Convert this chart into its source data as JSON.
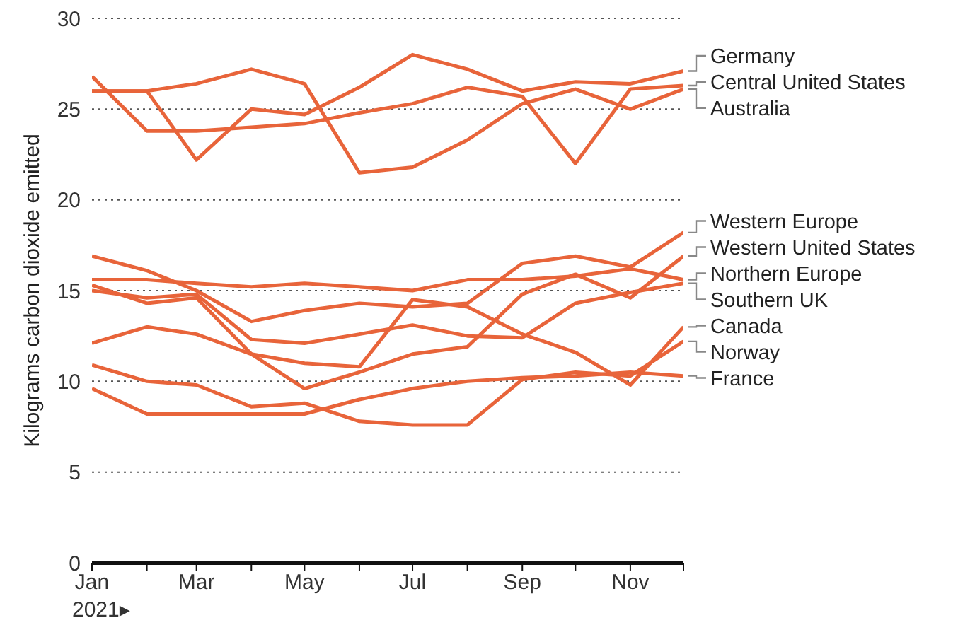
{
  "chart_data": {
    "type": "line",
    "ylabel": "Kilograms carbon dioxide emitted",
    "x": [
      "2021-01",
      "2021-02",
      "2021-03",
      "2021-04",
      "2021-05",
      "2021-06",
      "2021-07",
      "2021-08",
      "2021-09",
      "2021-10",
      "2021-11",
      "2021-12"
    ],
    "xlim": [
      "2021-01",
      "2021-12"
    ],
    "xticks": [
      {
        "value": "2021-01",
        "label": "Jan"
      },
      {
        "value": "2021-02",
        "label": null
      },
      {
        "value": "2021-03",
        "label": "Mar"
      },
      {
        "value": "2021-04",
        "label": null
      },
      {
        "value": "2021-05",
        "label": "May"
      },
      {
        "value": "2021-06",
        "label": null
      },
      {
        "value": "2021-07",
        "label": "Jul"
      },
      {
        "value": "2021-08",
        "label": null
      },
      {
        "value": "2021-09",
        "label": "Sep"
      },
      {
        "value": "2021-10",
        "label": null
      },
      {
        "value": "2021-11",
        "label": "Nov"
      },
      {
        "value": "2021-12",
        "label": null
      }
    ],
    "ylim": [
      0,
      30
    ],
    "yticks": [
      0,
      5,
      10,
      15,
      20,
      25,
      30
    ],
    "grid": "y",
    "annotations": [
      "2021▸"
    ],
    "series": [
      {
        "name": "Germany",
        "color": "#e8643a",
        "values": [
          26.0,
          26.0,
          22.2,
          25.0,
          24.7,
          26.2,
          28.0,
          27.2,
          26.0,
          26.5,
          26.4,
          27.1
        ]
      },
      {
        "name": "Central United States",
        "color": "#e8643a",
        "values": [
          26.8,
          23.8,
          23.8,
          24.0,
          24.2,
          24.8,
          25.3,
          26.2,
          25.7,
          22.0,
          26.1,
          26.3
        ]
      },
      {
        "name": "Australia",
        "color": "#e8643a",
        "values": [
          26.0,
          26.0,
          26.4,
          27.2,
          26.4,
          21.5,
          21.8,
          23.3,
          25.3,
          26.1,
          25.0,
          26.1
        ]
      },
      {
        "name": "Western Europe",
        "color": "#e8643a",
        "values": [
          16.9,
          16.1,
          15.0,
          13.3,
          13.9,
          14.3,
          14.1,
          14.3,
          16.5,
          16.9,
          16.3,
          18.2
        ]
      },
      {
        "name": "Western United States",
        "color": "#e8643a",
        "values": [
          15.3,
          14.3,
          14.6,
          11.5,
          9.6,
          10.5,
          11.5,
          11.9,
          14.8,
          15.9,
          14.6,
          16.9
        ]
      },
      {
        "name": "Northern Europe",
        "color": "#e8643a",
        "values": [
          15.6,
          15.6,
          15.4,
          15.2,
          15.4,
          15.2,
          15.0,
          15.6,
          15.6,
          15.8,
          16.2,
          15.6
        ]
      },
      {
        "name": "Southern UK",
        "color": "#e8643a",
        "values": [
          15.0,
          14.6,
          14.8,
          12.3,
          12.1,
          12.6,
          13.1,
          12.5,
          12.4,
          14.3,
          14.9,
          15.4
        ]
      },
      {
        "name": "Canada",
        "color": "#e8643a",
        "values": [
          12.1,
          13.0,
          12.6,
          11.5,
          11.0,
          10.8,
          14.5,
          14.1,
          12.6,
          11.6,
          9.8,
          13.0
        ]
      },
      {
        "name": "Norway",
        "color": "#e8643a",
        "values": [
          10.9,
          10.0,
          9.8,
          8.6,
          8.8,
          7.8,
          7.6,
          7.6,
          10.1,
          10.5,
          10.3,
          12.2
        ]
      },
      {
        "name": "France",
        "color": "#e8643a",
        "values": [
          9.6,
          8.2,
          8.2,
          8.2,
          8.2,
          9.0,
          9.6,
          10.0,
          10.2,
          10.3,
          10.5,
          10.3
        ]
      }
    ]
  }
}
